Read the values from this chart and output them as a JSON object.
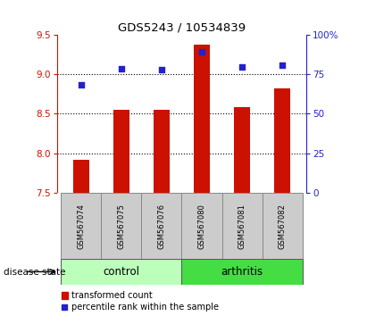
{
  "title": "GDS5243 / 10534839",
  "categories": [
    "GSM567074",
    "GSM567075",
    "GSM567076",
    "GSM567080",
    "GSM567081",
    "GSM567082"
  ],
  "bar_values": [
    7.92,
    8.55,
    8.55,
    9.38,
    8.58,
    8.82
  ],
  "scatter_values": [
    8.87,
    9.07,
    9.06,
    9.28,
    9.09,
    9.12
  ],
  "bar_bottom": 7.5,
  "ylim_left": [
    7.5,
    9.5
  ],
  "ylim_right": [
    0,
    100
  ],
  "yticks_left": [
    7.5,
    8.0,
    8.5,
    9.0,
    9.5
  ],
  "yticks_right": [
    0,
    25,
    50,
    75,
    100
  ],
  "ytick_labels_right": [
    "0",
    "25",
    "50",
    "75",
    "100%"
  ],
  "bar_color": "#cc1100",
  "scatter_color": "#2222cc",
  "control_color": "#bbffbb",
  "arthritis_color": "#44dd44",
  "label_bg_color": "#cccccc",
  "disease_state_label": "disease state",
  "control_label": "control",
  "arthritis_label": "arthritis",
  "legend_bar_label": "transformed count",
  "legend_scatter_label": "percentile rank within the sample",
  "grid_lines": [
    8.0,
    8.5,
    9.0
  ],
  "dotted_color": "black"
}
